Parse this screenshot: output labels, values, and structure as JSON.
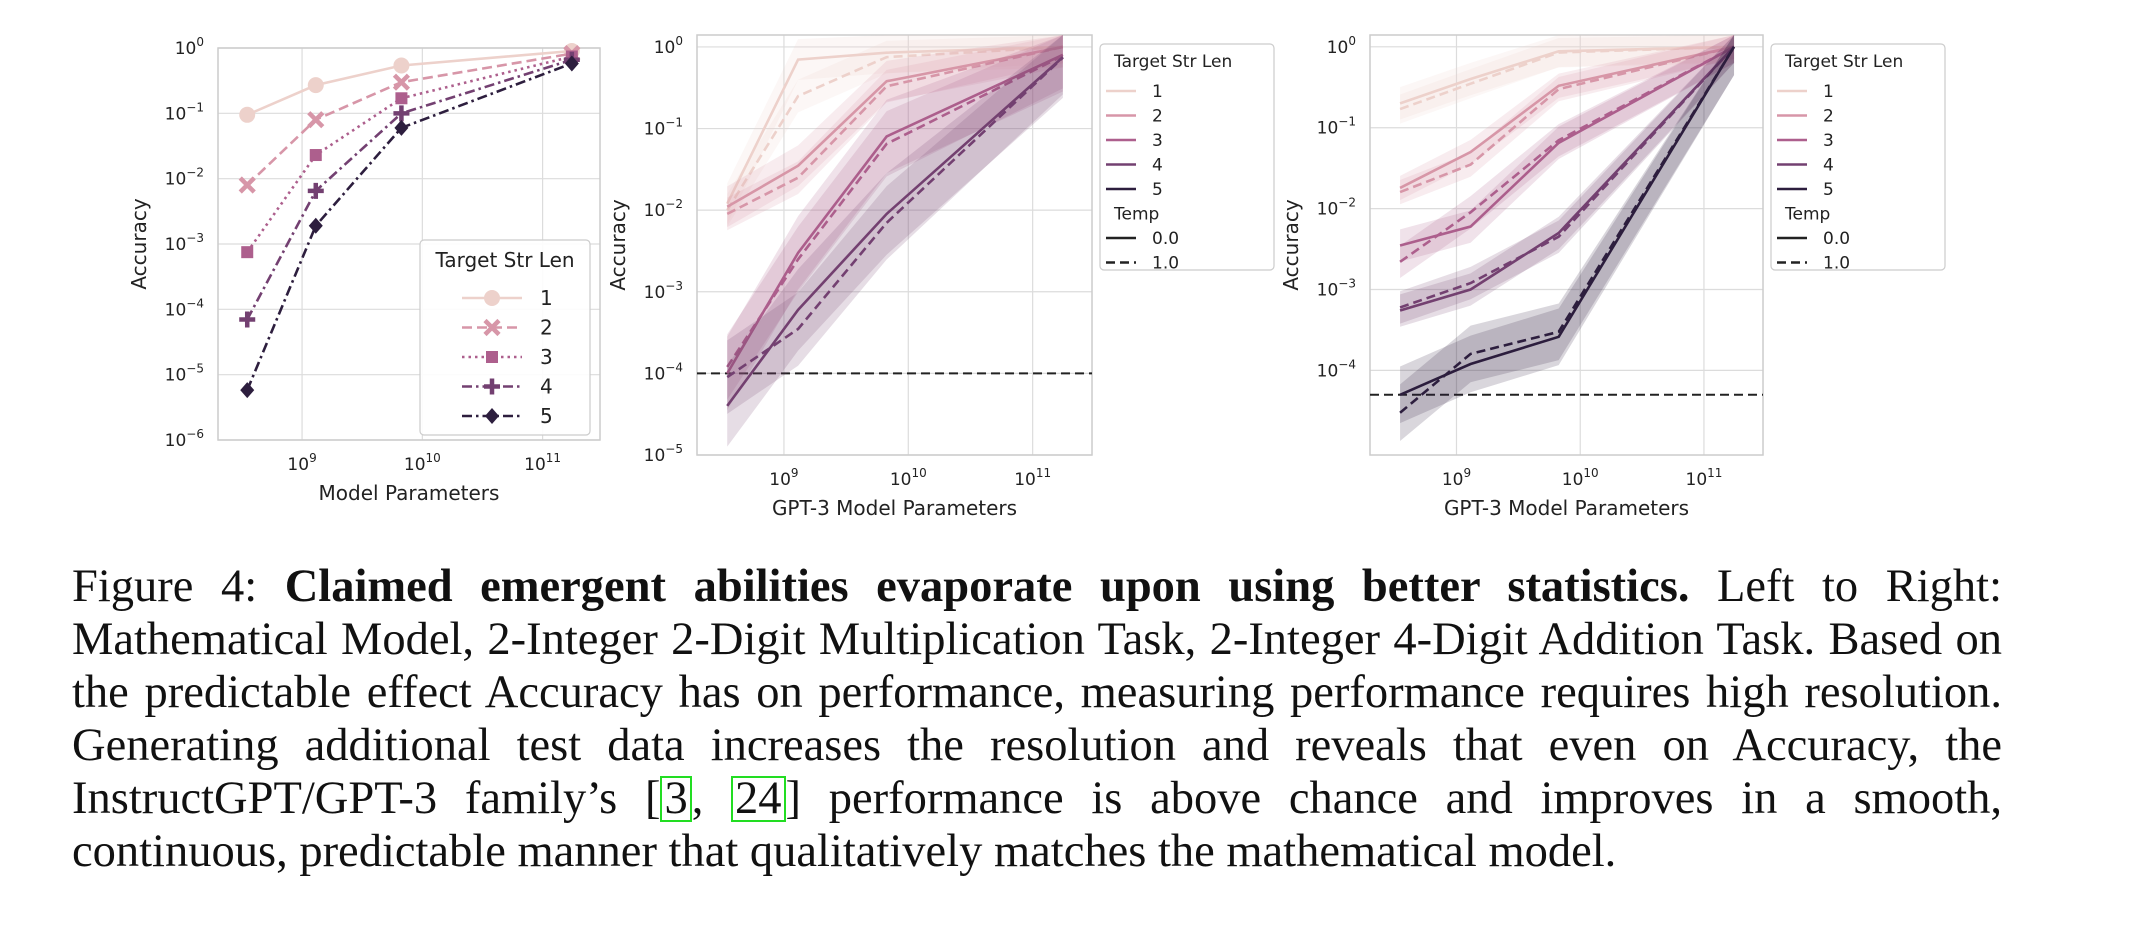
{
  "palette": {
    "len": [
      "#edd1cb",
      "#d796a8",
      "#ad5f8d",
      "#734071",
      "#2d1e3e"
    ],
    "grid": "#dcdcdc",
    "frame": "#cccccc",
    "chance": "#222222",
    "ref_border": "#22dd22"
  },
  "chart_data": [
    {
      "type": "line",
      "xlabel": "Model Parameters",
      "ylabel": "Accuracy",
      "xscale": "log",
      "yscale": "log",
      "xlim": [
        200000000,
        300000000000
      ],
      "ylim": [
        1e-06,
        1
      ],
      "xticks": [
        {
          "v": 1000000000,
          "b": "10",
          "e": "9"
        },
        {
          "v": 10000000000,
          "b": "10",
          "e": "10"
        },
        {
          "v": 100000000000,
          "b": "10",
          "e": "11"
        }
      ],
      "yticks": [
        {
          "v": 1,
          "b": "10",
          "e": "0"
        },
        {
          "v": 0.1,
          "b": "10",
          "e": "−1"
        },
        {
          "v": 0.01,
          "b": "10",
          "e": "−2"
        },
        {
          "v": 0.001,
          "b": "10",
          "e": "−3"
        },
        {
          "v": 0.0001,
          "b": "10",
          "e": "−4"
        },
        {
          "v": 1e-05,
          "b": "10",
          "e": "−5"
        },
        {
          "v": 1e-06,
          "b": "10",
          "e": "−6"
        }
      ],
      "legend": {
        "title": "Target Str Len",
        "position": "lower right",
        "entries": [
          "1",
          "2",
          "3",
          "4",
          "5"
        ]
      },
      "grid": true,
      "series": [
        {
          "name": "1",
          "marker": "circle",
          "dash": "solid",
          "x": [
            350000000,
            1300000000,
            6700000000,
            175000000000
          ],
          "y": [
            0.095,
            0.27,
            0.54,
            0.9
          ]
        },
        {
          "name": "2",
          "marker": "x",
          "dash": "dashed",
          "x": [
            350000000,
            1300000000,
            6700000000,
            175000000000
          ],
          "y": [
            0.008,
            0.08,
            0.3,
            0.82
          ]
        },
        {
          "name": "3",
          "marker": "square",
          "dash": "dotted",
          "x": [
            350000000,
            1300000000,
            6700000000,
            175000000000
          ],
          "y": [
            0.00075,
            0.023,
            0.17,
            0.74
          ]
        },
        {
          "name": "4",
          "marker": "plus",
          "dash": "dashdot",
          "x": [
            350000000,
            1300000000,
            6700000000,
            175000000000
          ],
          "y": [
            7e-05,
            0.0065,
            0.1,
            0.66
          ]
        },
        {
          "name": "5",
          "marker": "diamond",
          "dash": "dashdot",
          "x": [
            350000000,
            1300000000,
            6700000000,
            175000000000
          ],
          "y": [
            5.8e-06,
            0.0019,
            0.06,
            0.58
          ]
        }
      ]
    },
    {
      "type": "line",
      "xlabel": "GPT-3 Model Parameters",
      "ylabel": "Accuracy",
      "xscale": "log",
      "yscale": "log",
      "xlim": [
        200000000,
        300000000000
      ],
      "ylim": [
        1e-05,
        1.4
      ],
      "xticks": [
        {
          "v": 1000000000,
          "b": "10",
          "e": "9"
        },
        {
          "v": 10000000000,
          "b": "10",
          "e": "10"
        },
        {
          "v": 100000000000,
          "b": "10",
          "e": "11"
        }
      ],
      "yticks": [
        {
          "v": 1,
          "b": "10",
          "e": "0"
        },
        {
          "v": 0.1,
          "b": "10",
          "e": "−1"
        },
        {
          "v": 0.01,
          "b": "10",
          "e": "−2"
        },
        {
          "v": 0.001,
          "b": "10",
          "e": "−3"
        },
        {
          "v": 0.0001,
          "b": "10",
          "e": "−4"
        },
        {
          "v": 1e-05,
          "b": "10",
          "e": "−5"
        }
      ],
      "legend": {
        "title": "Target Str Len",
        "position": "outside right",
        "entries": [
          "1",
          "2",
          "3",
          "4",
          "5"
        ],
        "title2": "Temp",
        "entries2": [
          "0.0",
          "1.0"
        ]
      },
      "grid": true,
      "chance_line": 0.0001,
      "series": [
        {
          "name": "1",
          "temp": "0.0",
          "x": [
            350000000,
            1300000000,
            6700000000,
            175000000000
          ],
          "y": [
            0.012,
            0.7,
            0.85,
            1.0
          ],
          "band": 0.25
        },
        {
          "name": "1",
          "temp": "1.0",
          "x": [
            350000000,
            1300000000,
            6700000000,
            175000000000
          ],
          "y": [
            0.01,
            0.25,
            0.75,
            1.0
          ],
          "band": 0.2
        },
        {
          "name": "2",
          "temp": "0.0",
          "x": [
            350000000,
            1300000000,
            6700000000,
            175000000000
          ],
          "y": [
            0.011,
            0.035,
            0.38,
            1.0
          ],
          "band": 0.25
        },
        {
          "name": "2",
          "temp": "1.0",
          "x": [
            350000000,
            1300000000,
            6700000000,
            175000000000
          ],
          "y": [
            0.009,
            0.025,
            0.33,
            1.0
          ],
          "band": 0.2
        },
        {
          "name": "3",
          "temp": "0.0",
          "x": [
            350000000,
            1300000000,
            6700000000,
            175000000000
          ],
          "y": [
            0.0001,
            0.003,
            0.08,
            0.8
          ],
          "band": 0.45
        },
        {
          "name": "3",
          "temp": "1.0",
          "x": [
            350000000,
            1300000000,
            6700000000,
            175000000000
          ],
          "y": [
            0.00012,
            0.0025,
            0.065,
            0.78
          ],
          "band": 0.4
        },
        {
          "name": "4",
          "temp": "0.0",
          "x": [
            350000000,
            1300000000,
            6700000000,
            175000000000
          ],
          "y": [
            4e-05,
            0.0006,
            0.009,
            0.75
          ],
          "band": 0.5
        },
        {
          "name": "4",
          "temp": "1.0",
          "x": [
            350000000,
            1300000000,
            6700000000,
            175000000000
          ],
          "y": [
            9e-05,
            0.00035,
            0.007,
            0.74
          ],
          "band": 0.45
        }
      ]
    },
    {
      "type": "line",
      "xlabel": "GPT-3 Model Parameters",
      "ylabel": "Accuracy",
      "xscale": "log",
      "yscale": "log",
      "xlim": [
        200000000,
        300000000000
      ],
      "ylim": [
        9e-06,
        1.4
      ],
      "xticks": [
        {
          "v": 1000000000,
          "b": "10",
          "e": "9"
        },
        {
          "v": 10000000000,
          "b": "10",
          "e": "10"
        },
        {
          "v": 100000000000,
          "b": "10",
          "e": "11"
        }
      ],
      "yticks": [
        {
          "v": 1,
          "b": "10",
          "e": "0"
        },
        {
          "v": 0.1,
          "b": "10",
          "e": "−1"
        },
        {
          "v": 0.01,
          "b": "10",
          "e": "−2"
        },
        {
          "v": 0.001,
          "b": "10",
          "e": "−3"
        },
        {
          "v": 0.0001,
          "b": "10",
          "e": "−4"
        }
      ],
      "legend": {
        "title": "Target Str Len",
        "position": "outside right",
        "entries": [
          "1",
          "2",
          "3",
          "4",
          "5"
        ],
        "title2": "Temp",
        "entries2": [
          "0.0",
          "1.0"
        ]
      },
      "grid": true,
      "chance_line": 5e-05,
      "series": [
        {
          "name": "1",
          "temp": "0.0",
          "x": [
            350000000,
            1300000000,
            6700000000,
            175000000000
          ],
          "y": [
            0.2,
            0.4,
            0.88,
            1.0
          ],
          "band": 0.2
        },
        {
          "name": "1",
          "temp": "1.0",
          "x": [
            350000000,
            1300000000,
            6700000000,
            175000000000
          ],
          "y": [
            0.17,
            0.35,
            0.85,
            1.0
          ],
          "band": 0.18
        },
        {
          "name": "2",
          "temp": "0.0",
          "x": [
            350000000,
            1300000000,
            6700000000,
            175000000000
          ],
          "y": [
            0.018,
            0.05,
            0.33,
            1.0
          ],
          "band": 0.15
        },
        {
          "name": "2",
          "temp": "1.0",
          "x": [
            350000000,
            1300000000,
            6700000000,
            175000000000
          ],
          "y": [
            0.016,
            0.035,
            0.3,
            1.0
          ],
          "band": 0.15
        },
        {
          "name": "3",
          "temp": "0.0",
          "x": [
            350000000,
            1300000000,
            6700000000,
            175000000000
          ],
          "y": [
            0.0035,
            0.006,
            0.065,
            1.0
          ],
          "band": 0.2
        },
        {
          "name": "3",
          "temp": "1.0",
          "x": [
            350000000,
            1300000000,
            6700000000,
            175000000000
          ],
          "y": [
            0.0022,
            0.009,
            0.07,
            1.0
          ],
          "band": 0.2
        },
        {
          "name": "4",
          "temp": "0.0",
          "x": [
            350000000,
            1300000000,
            6700000000,
            175000000000
          ],
          "y": [
            0.00055,
            0.001,
            0.005,
            1.0
          ],
          "band": 0.2
        },
        {
          "name": "4",
          "temp": "1.0",
          "x": [
            350000000,
            1300000000,
            6700000000,
            175000000000
          ],
          "y": [
            0.0006,
            0.0012,
            0.0045,
            1.0
          ],
          "band": 0.2
        },
        {
          "name": "5",
          "temp": "0.0",
          "x": [
            350000000,
            1300000000,
            6700000000,
            175000000000
          ],
          "y": [
            5e-05,
            0.00012,
            0.00026,
            1.0
          ],
          "band": 0.35
        },
        {
          "name": "5",
          "temp": "1.0",
          "x": [
            350000000,
            1300000000,
            6700000000,
            175000000000
          ],
          "y": [
            3e-05,
            0.00016,
            0.0003,
            1.0
          ],
          "band": 0.35
        }
      ]
    }
  ],
  "caption": {
    "prefix": "Figure 4: ",
    "bold": "Claimed emergent abilities evaporate upon using better statistics.",
    "part1": " Left to Right: Mathematical Model, 2-Integer 2-Digit Multiplication Task, 2-Integer 4-Digit Addition Task. Based on the predictable effect Accuracy has on performance, measuring performance requires high resolution. Generating additional test data increases the resolution and reveals that even on Accuracy, the InstructGPT/GPT-3 family’s [",
    "ref1": "3",
    "sep": ", ",
    "ref2": "24",
    "part2": "] performance is above chance and improves in a smooth, continuous, predictable manner that qualitatively matches the mathematical model."
  }
}
